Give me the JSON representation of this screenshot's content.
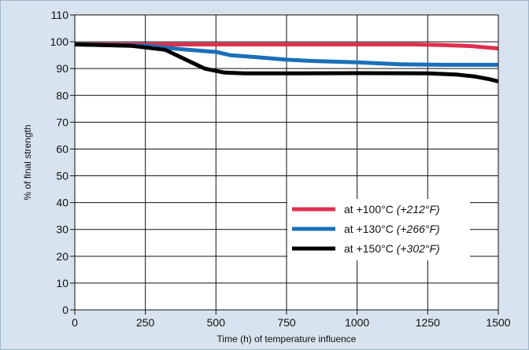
{
  "chart_data": {
    "type": "line",
    "xlabel": "Time (h) of temperature influence",
    "ylabel": "% of final strength",
    "xlim": [
      0,
      1500
    ],
    "ylim": [
      0,
      110
    ],
    "xticks": [
      0,
      250,
      500,
      750,
      1000,
      1250,
      1500
    ],
    "yticks": [
      0,
      10,
      20,
      30,
      40,
      50,
      60,
      70,
      80,
      90,
      100,
      110
    ],
    "grid": true,
    "legend_position": "lower-right",
    "series": [
      {
        "name": "at +100°C",
        "name_suffix": "(+212°F)",
        "color": "#e0304f",
        "points": [
          [
            0,
            99
          ],
          [
            250,
            99
          ],
          [
            500,
            99
          ],
          [
            750,
            99
          ],
          [
            1000,
            99
          ],
          [
            1200,
            99
          ],
          [
            1300,
            98.8
          ],
          [
            1400,
            98.4
          ],
          [
            1500,
            97.5
          ]
        ]
      },
      {
        "name": "at +130°C",
        "name_suffix": "(+266°F)",
        "color": "#1a6fb8",
        "points": [
          [
            0,
            99
          ],
          [
            250,
            98.5
          ],
          [
            400,
            97
          ],
          [
            500,
            96.2
          ],
          [
            550,
            95
          ],
          [
            650,
            94.2
          ],
          [
            750,
            93.3
          ],
          [
            850,
            92.8
          ],
          [
            1000,
            92.3
          ],
          [
            1150,
            91.6
          ],
          [
            1300,
            91.4
          ],
          [
            1500,
            91.4
          ]
        ]
      },
      {
        "name": "at +150°C",
        "name_suffix": "(+302°F)",
        "color": "#000000",
        "points": [
          [
            0,
            99
          ],
          [
            200,
            98.5
          ],
          [
            320,
            97
          ],
          [
            400,
            93
          ],
          [
            460,
            90
          ],
          [
            530,
            88.5
          ],
          [
            600,
            88.2
          ],
          [
            800,
            88.2
          ],
          [
            1000,
            88.3
          ],
          [
            1250,
            88.2
          ],
          [
            1350,
            87.8
          ],
          [
            1420,
            87
          ],
          [
            1470,
            86
          ],
          [
            1500,
            85.2
          ]
        ]
      }
    ]
  }
}
